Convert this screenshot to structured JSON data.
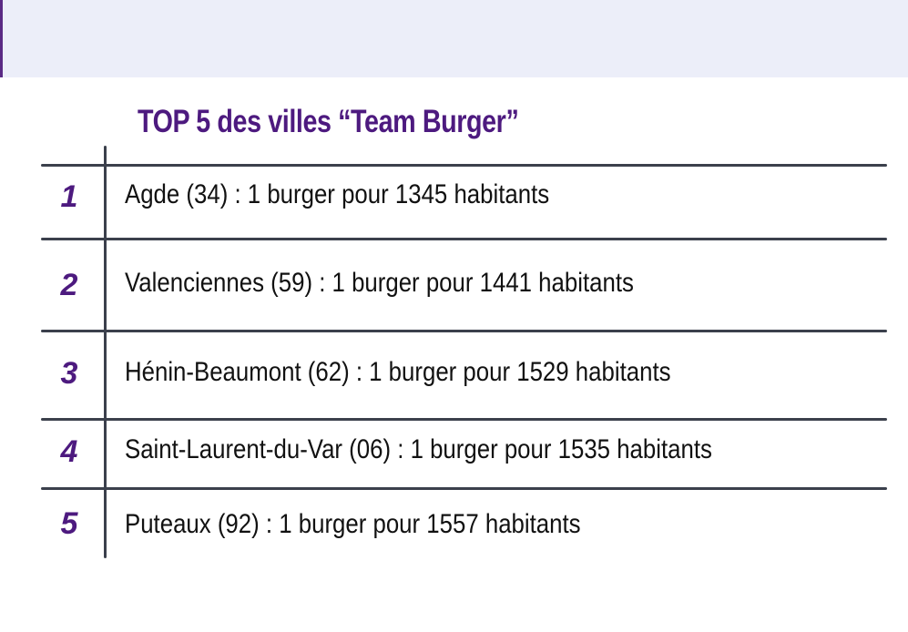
{
  "title": "TOP 5 des villes “Team Burger”",
  "rows": [
    {
      "rank": "1",
      "text": "Agde (34) : 1 burger pour 1345 habitants"
    },
    {
      "rank": "2",
      "text": "Valenciennes (59) : 1 burger pour 1441 habitants"
    },
    {
      "rank": "3",
      "text": "Hénin-Beaumont (62) : 1 burger pour 1529 habitants"
    },
    {
      "rank": "4",
      "text": "Saint-Laurent-du-Var (06) : 1 burger pour 1535 habitants"
    },
    {
      "rank": "5",
      "text": "Puteaux (92) : 1 burger pour 1557 habitants"
    }
  ],
  "colors": {
    "accent": "#4d1a7f",
    "lines": "#3b404c",
    "band": "#eceef9"
  }
}
